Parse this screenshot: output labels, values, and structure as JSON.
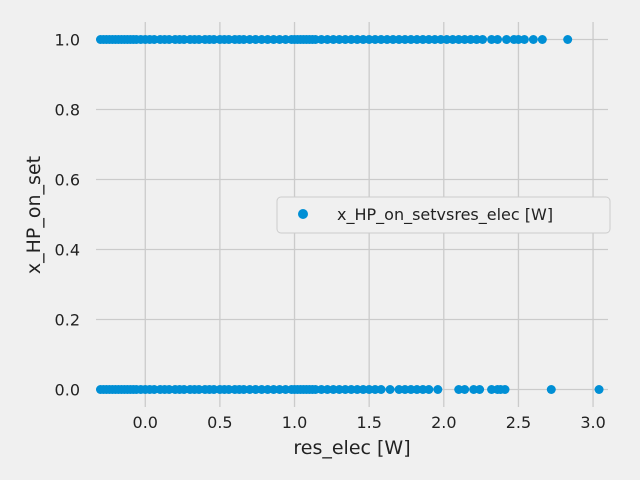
{
  "chart_data": {
    "type": "scatter",
    "xlabel": "res_elec [W]",
    "ylabel": "x_HP_on_set",
    "xlim": [
      -0.33,
      3.1
    ],
    "ylim": [
      -0.05,
      1.05
    ],
    "x_ticks": [
      0.0,
      0.5,
      1.0,
      1.5,
      2.0,
      2.5,
      3.0
    ],
    "x_tick_labels": [
      "0.0",
      "0.5",
      "1.0",
      "1.5",
      "2.0",
      "2.5",
      "3.0"
    ],
    "y_ticks": [
      0.0,
      0.2,
      0.4,
      0.6,
      0.8,
      1.0
    ],
    "y_tick_labels": [
      "0.0",
      "0.2",
      "0.4",
      "0.6",
      "0.8",
      "1.0"
    ],
    "grid": true,
    "legend_position": "center-right",
    "series": [
      {
        "name": "x_HP_on_setvsres_elec [W]",
        "color": "#008fd5",
        "points": [
          {
            "y": 1,
            "x": [
              -0.3,
              -0.28,
              -0.26,
              -0.24,
              -0.22,
              -0.2,
              -0.18,
              -0.16,
              -0.14,
              -0.12,
              -0.1,
              -0.08,
              -0.06,
              -0.03,
              0.0,
              0.03,
              0.06,
              0.1,
              0.13,
              0.16,
              0.2,
              0.23,
              0.26,
              0.3,
              0.33,
              0.36,
              0.4,
              0.43,
              0.46,
              0.5,
              0.53,
              0.56,
              0.6,
              0.63,
              0.66,
              0.7,
              0.74,
              0.78,
              0.82,
              0.86,
              0.9,
              0.94,
              0.98,
              1.0,
              1.02,
              1.04,
              1.06,
              1.08,
              1.1,
              1.12,
              1.14,
              1.18,
              1.22,
              1.26,
              1.3,
              1.34,
              1.38,
              1.42,
              1.46,
              1.5,
              1.54,
              1.58,
              1.62,
              1.66,
              1.7,
              1.74,
              1.78,
              1.82,
              1.86,
              1.9,
              1.94,
              1.98,
              2.02,
              2.06,
              2.1,
              2.14,
              2.18,
              2.22,
              2.26,
              2.32,
              2.36,
              2.42,
              2.47,
              2.5,
              2.54,
              2.6,
              2.66,
              2.83
            ]
          },
          {
            "y": 0,
            "x": [
              -0.3,
              -0.28,
              -0.26,
              -0.24,
              -0.22,
              -0.2,
              -0.18,
              -0.16,
              -0.14,
              -0.12,
              -0.1,
              -0.08,
              -0.06,
              -0.03,
              0.0,
              0.03,
              0.06,
              0.1,
              0.13,
              0.16,
              0.2,
              0.23,
              0.26,
              0.3,
              0.33,
              0.36,
              0.4,
              0.43,
              0.46,
              0.5,
              0.53,
              0.56,
              0.6,
              0.63,
              0.66,
              0.7,
              0.74,
              0.78,
              0.82,
              0.86,
              0.9,
              0.94,
              0.98,
              1.0,
              1.02,
              1.04,
              1.06,
              1.08,
              1.1,
              1.12,
              1.14,
              1.18,
              1.22,
              1.26,
              1.3,
              1.34,
              1.38,
              1.42,
              1.46,
              1.5,
              1.54,
              1.58,
              1.64,
              1.7,
              1.74,
              1.78,
              1.82,
              1.86,
              1.9,
              1.96,
              2.1,
              2.14,
              2.2,
              2.24,
              2.32,
              2.36,
              2.38,
              2.41,
              2.72,
              3.04
            ]
          }
        ]
      }
    ]
  }
}
